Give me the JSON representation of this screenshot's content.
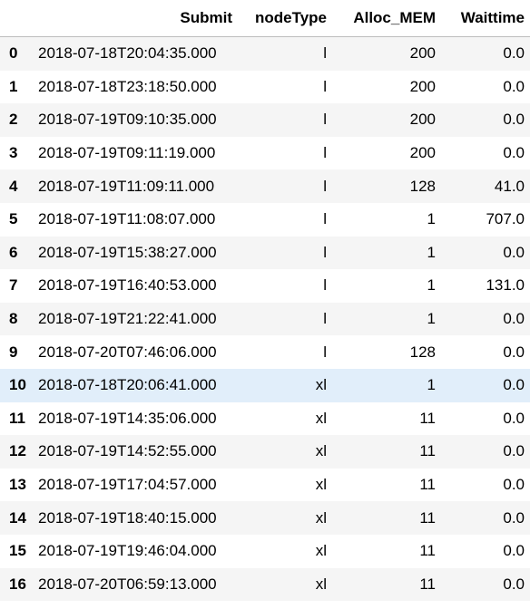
{
  "table": {
    "columns": [
      "",
      "Submit",
      "nodeType",
      "Alloc_MEM",
      "Waittime"
    ],
    "highlighted_row_index": 10,
    "rows": [
      {
        "index": "0",
        "submit": "2018-07-18T20:04:35.000",
        "nodeType": "l",
        "alloc_mem": "200",
        "waittime": "0.0"
      },
      {
        "index": "1",
        "submit": "2018-07-18T23:18:50.000",
        "nodeType": "l",
        "alloc_mem": "200",
        "waittime": "0.0"
      },
      {
        "index": "2",
        "submit": "2018-07-19T09:10:35.000",
        "nodeType": "l",
        "alloc_mem": "200",
        "waittime": "0.0"
      },
      {
        "index": "3",
        "submit": "2018-07-19T09:11:19.000",
        "nodeType": "l",
        "alloc_mem": "200",
        "waittime": "0.0"
      },
      {
        "index": "4",
        "submit": "2018-07-19T11:09:11.000",
        "nodeType": "l",
        "alloc_mem": "128",
        "waittime": "41.0"
      },
      {
        "index": "5",
        "submit": "2018-07-19T11:08:07.000",
        "nodeType": "l",
        "alloc_mem": "1",
        "waittime": "707.0"
      },
      {
        "index": "6",
        "submit": "2018-07-19T15:38:27.000",
        "nodeType": "l",
        "alloc_mem": "1",
        "waittime": "0.0"
      },
      {
        "index": "7",
        "submit": "2018-07-19T16:40:53.000",
        "nodeType": "l",
        "alloc_mem": "1",
        "waittime": "131.0"
      },
      {
        "index": "8",
        "submit": "2018-07-19T21:22:41.000",
        "nodeType": "l",
        "alloc_mem": "1",
        "waittime": "0.0"
      },
      {
        "index": "9",
        "submit": "2018-07-20T07:46:06.000",
        "nodeType": "l",
        "alloc_mem": "128",
        "waittime": "0.0"
      },
      {
        "index": "10",
        "submit": "2018-07-18T20:06:41.000",
        "nodeType": "xl",
        "alloc_mem": "1",
        "waittime": "0.0"
      },
      {
        "index": "11",
        "submit": "2018-07-19T14:35:06.000",
        "nodeType": "xl",
        "alloc_mem": "11",
        "waittime": "0.0"
      },
      {
        "index": "12",
        "submit": "2018-07-19T14:52:55.000",
        "nodeType": "xl",
        "alloc_mem": "11",
        "waittime": "0.0"
      },
      {
        "index": "13",
        "submit": "2018-07-19T17:04:57.000",
        "nodeType": "xl",
        "alloc_mem": "11",
        "waittime": "0.0"
      },
      {
        "index": "14",
        "submit": "2018-07-19T18:40:15.000",
        "nodeType": "xl",
        "alloc_mem": "11",
        "waittime": "0.0"
      },
      {
        "index": "15",
        "submit": "2018-07-19T19:46:04.000",
        "nodeType": "xl",
        "alloc_mem": "11",
        "waittime": "0.0"
      },
      {
        "index": "16",
        "submit": "2018-07-20T06:59:13.000",
        "nodeType": "xl",
        "alloc_mem": "11",
        "waittime": "0.0"
      }
    ]
  },
  "colors": {
    "stripe": "#f5f5f5",
    "hover": "#e1eefa",
    "text": "#000000"
  }
}
